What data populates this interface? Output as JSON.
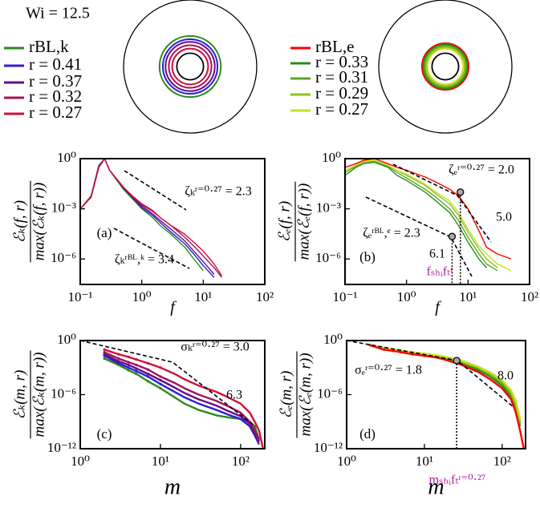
{
  "chart_data": [
    {
      "type": "rings",
      "title": "Wi = 12.5",
      "series": [
        {
          "name": "rBL,k",
          "color": "#2a8a1e",
          "value": 0.46
        },
        {
          "name": "r = 0.41",
          "color": "#2b1fd6",
          "value": 0.41
        },
        {
          "name": "r = 0.37",
          "color": "#6a0a8a",
          "value": 0.37
        },
        {
          "name": "r = 0.32",
          "color": "#a3135a",
          "value": 0.32
        },
        {
          "name": "r = 0.27",
          "color": "#d0103a",
          "value": 0.27
        }
      ]
    },
    {
      "type": "rings",
      "series": [
        {
          "name": "rBL,e",
          "color": "#ff0000",
          "value": 0.35
        },
        {
          "name": "r = 0.33",
          "color": "#2a8a1e",
          "value": 0.33
        },
        {
          "name": "r = 0.31",
          "color": "#5aa81e",
          "value": 0.31
        },
        {
          "name": "r = 0.29",
          "color": "#8ec21e",
          "value": 0.29
        },
        {
          "name": "r = 0.27",
          "color": "#c8e01e",
          "value": 0.27
        }
      ]
    },
    {
      "type": "line",
      "xscale": "log",
      "yscale": "log",
      "label": "(a)",
      "xlabel": "f",
      "ylabel": {
        "numerator": "ℰₖ(f, r)",
        "denominator": "max(ℰₖ(f, r))"
      },
      "xlim": [
        0.1,
        100
      ],
      "ylim": [
        3e-08,
        1
      ],
      "xticks": [
        {
          "value": 0.1,
          "label": "10⁻¹"
        },
        {
          "value": 1,
          "label": "10⁰"
        },
        {
          "value": 10,
          "label": "10¹"
        },
        {
          "value": 100,
          "label": "10²"
        }
      ],
      "yticks": [
        {
          "value": 1,
          "label": "10⁰"
        },
        {
          "value": 0.001,
          "label": "10⁻³"
        },
        {
          "value": 1e-06,
          "label": "10⁻⁶"
        }
      ],
      "annotations": [
        "ζₖʳ⁼⁰·²⁷ = 2.3",
        "ζₖʳᴮᴸ,ᵏ = 3.4"
      ],
      "x": [
        0.1,
        0.15,
        0.2,
        0.25,
        0.3,
        0.5,
        0.7,
        1,
        1.5,
        2,
        3,
        5,
        7,
        10,
        15,
        20
      ],
      "series": [
        {
          "color": "#2a8a1e",
          "values": [
            0.001,
            0.006,
            0.4,
            1,
            0.2,
            0.015,
            0.004,
            0.001,
            0.0003,
            0.0001,
            3e-05,
            5e-06,
            1e-06,
            2e-07,
            null,
            null
          ]
        },
        {
          "color": "#2b1fd6",
          "values": [
            0.001,
            0.005,
            0.35,
            1,
            0.2,
            0.018,
            0.005,
            0.0012,
            0.0004,
            0.00015,
            4e-05,
            8e-06,
            2e-06,
            4e-07,
            8e-08,
            null
          ]
        },
        {
          "color": "#6a0a8a",
          "values": [
            0.001,
            0.005,
            0.3,
            1,
            0.2,
            0.02,
            0.005,
            0.0015,
            0.0005,
            0.0002,
            6e-05,
            1.2e-05,
            3e-06,
            7e-07,
            1.2e-07,
            null
          ]
        },
        {
          "color": "#a3135a",
          "values": [
            0.001,
            0.005,
            0.3,
            1,
            0.2,
            0.02,
            0.006,
            0.0018,
            0.0007,
            0.0003,
            0.0001,
            2e-05,
            6e-06,
            1.5e-06,
            3e-07,
            8e-08
          ]
        },
        {
          "color": "#d0103a",
          "values": [
            0.001,
            0.005,
            0.3,
            1,
            0.2,
            0.02,
            0.006,
            0.002,
            0.0008,
            0.0003,
            0.0001,
            3e-05,
            1e-05,
            3e-06,
            5e-07,
            1e-07
          ]
        }
      ]
    },
    {
      "type": "line",
      "xscale": "log",
      "yscale": "log",
      "label": "(b)",
      "xlabel": "f",
      "ylabel": {
        "numerator": "ℰₑ(f, r)",
        "denominator": "max(ℰₑ(f, r))"
      },
      "xlim": [
        0.1,
        100
      ],
      "ylim": [
        3e-08,
        1
      ],
      "xticks": [
        {
          "value": 0.1,
          "label": "10⁻¹"
        },
        {
          "value": 1,
          "label": "10⁰"
        },
        {
          "value": 10,
          "label": "10¹"
        },
        {
          "value": 100,
          "label": "10²"
        }
      ],
      "yticks": [
        {
          "value": 1,
          "label": "10⁰"
        },
        {
          "value": 0.001,
          "label": "10⁻³"
        },
        {
          "value": 1e-06,
          "label": "10⁻⁶"
        }
      ],
      "annotations": [
        "ζₑʳ⁼⁰·²⁷ = 2.0",
        "5.0",
        "ζₑʳᴮᴸ,ᵉ = 2.3",
        "6.1",
        "fₛₕᵢfₜʳ"
      ],
      "markers": [
        {
          "x": 7.5,
          "y": 0.01
        },
        {
          "x": 5.5,
          "y": 2.2e-05
        }
      ],
      "x": [
        0.1,
        0.15,
        0.2,
        0.3,
        0.5,
        0.7,
        1,
        2,
        3,
        5,
        7,
        10,
        15,
        20,
        30,
        50
      ],
      "series": [
        {
          "color": "#2a8a1e",
          "values": [
            0.1,
            0.3,
            0.5,
            0.6,
            0.3,
            0.1,
            0.05,
            0.01,
            0.003,
            0.0006,
            0.0001,
            1e-05,
            1e-06,
            3e-07,
            null,
            null
          ]
        },
        {
          "color": "#5aa81e",
          "values": [
            0.15,
            0.35,
            0.6,
            0.7,
            0.35,
            0.15,
            0.07,
            0.015,
            0.005,
            0.001,
            0.0002,
            2e-05,
            2e-06,
            5e-07,
            2e-07,
            null
          ]
        },
        {
          "color": "#8ec21e",
          "values": [
            0.2,
            0.4,
            0.6,
            0.8,
            0.4,
            0.2,
            0.1,
            0.025,
            0.008,
            0.002,
            0.0004,
            4e-05,
            4e-06,
            1e-06,
            3e-07,
            null
          ]
        },
        {
          "color": "#c8e01e",
          "values": [
            0.2,
            0.4,
            0.7,
            0.8,
            0.4,
            0.2,
            0.12,
            0.03,
            0.01,
            0.003,
            0.0006,
            6e-05,
            6e-06,
            2e-06,
            5e-07,
            2e-07
          ]
        },
        {
          "color": "#ff0000",
          "values": [
            0.3,
            0.5,
            0.8,
            1,
            0.5,
            0.3,
            0.2,
            0.08,
            0.04,
            0.015,
            0.006,
            0.001,
            5e-05,
            5e-06,
            2e-06,
            1e-06
          ]
        }
      ]
    },
    {
      "type": "line",
      "xscale": "log",
      "yscale": "log",
      "label": "(c)",
      "xlabel": "m",
      "ylabel": {
        "numerator": "ℰₖ(m, r)",
        "denominator": "max(ℰₖ(m, r))"
      },
      "xlim": [
        1,
        200
      ],
      "ylim": [
        1e-12,
        1
      ],
      "xticks": [
        {
          "value": 1,
          "label": "10⁰"
        },
        {
          "value": 10,
          "label": "10¹"
        },
        {
          "value": 100,
          "label": "10²"
        }
      ],
      "yticks": [
        {
          "value": 1,
          "label": "10⁰"
        },
        {
          "value": 1e-06,
          "label": "10⁻⁶"
        },
        {
          "value": 1e-12,
          "label": "10⁻¹²"
        }
      ],
      "annotations": [
        "σₖʳ⁼⁰·²⁷ = 3.0",
        "6.3"
      ],
      "x": [
        2,
        3,
        4,
        5,
        7,
        10,
        15,
        20,
        30,
        50,
        70,
        100,
        130,
        150,
        170,
        190
      ],
      "series": [
        {
          "color": "#2a8a1e",
          "values": [
            0.01,
            0.002,
            0.0005,
            0.0002,
            3e-05,
            5e-06,
            5e-07,
            1e-07,
            2e-08,
            5e-09,
            3e-09,
            2e-09,
            1e-09,
            3e-10,
            1e-11,
            null
          ]
        },
        {
          "color": "#2b1fd6",
          "values": [
            0.02,
            0.003,
            0.001,
            0.0004,
            0.0001,
            1.5e-05,
            2e-06,
            5e-07,
            1e-07,
            2e-08,
            6e-09,
            2e-09,
            3e-10,
            3e-11,
            3e-12,
            null
          ]
        },
        {
          "color": "#6a0a8a",
          "values": [
            0.03,
            0.005,
            0.002,
            0.0008,
            0.0002,
            4e-05,
            6e-06,
            1.5e-06,
            3e-07,
            6e-08,
            1.5e-08,
            4e-09,
            6e-10,
            6e-11,
            6e-12,
            null
          ]
        },
        {
          "color": "#a3135a",
          "values": [
            0.05,
            0.01,
            0.004,
            0.002,
            0.0006,
            0.0001,
            2e-05,
            5e-06,
            1e-06,
            2e-07,
            5e-08,
            1e-08,
            1e-09,
            1e-10,
            1e-11,
            null
          ]
        },
        {
          "color": "#d0103a",
          "values": [
            0.1,
            0.03,
            0.015,
            0.008,
            0.003,
            0.001,
            0.0002,
            5e-05,
            1e-05,
            2e-06,
            5e-07,
            1e-07,
            1e-08,
            1e-09,
            1e-10,
            1e-12
          ]
        }
      ]
    },
    {
      "type": "line",
      "xscale": "log",
      "yscale": "log",
      "label": "(d)",
      "xlabel": "m",
      "ylabel": {
        "numerator": "ℰₑ(m, r)",
        "denominator": "max(ℰₑ(m, r))"
      },
      "xlim": [
        1,
        200
      ],
      "ylim": [
        1e-12,
        1
      ],
      "xticks": [
        {
          "value": 1,
          "label": "10⁰"
        },
        {
          "value": 10,
          "label": "10¹"
        },
        {
          "value": 100,
          "label": "10²"
        }
      ],
      "yticks": [
        {
          "value": 1,
          "label": "10⁰"
        },
        {
          "value": 1e-06,
          "label": "10⁻⁶"
        },
        {
          "value": 1e-12,
          "label": "10⁻¹²"
        }
      ],
      "annotations": [
        "σₑʳ⁼⁰·²⁷ = 1.8",
        "8.0",
        "mₛₕᵢfₜʳ⁼⁰·²⁷"
      ],
      "markers": [
        {
          "x": 26,
          "y": 0.006
        }
      ],
      "x": [
        2,
        3,
        4,
        5,
        7,
        10,
        15,
        20,
        30,
        50,
        70,
        100,
        130,
        150,
        170,
        190
      ],
      "series": [
        {
          "color": "#2a8a1e",
          "values": [
            0.3,
            0.12,
            0.08,
            0.06,
            0.035,
            0.025,
            0.015,
            0.008,
            0.003,
            0.0005,
            0.0001,
            1e-05,
            6e-07,
            3e-08,
            3e-10,
            null
          ]
        },
        {
          "color": "#5aa81e",
          "values": [
            0.3,
            0.13,
            0.09,
            0.065,
            0.04,
            0.028,
            0.017,
            0.01,
            0.004,
            0.0008,
            0.00015,
            2e-05,
            1e-06,
            5e-08,
            5e-10,
            null
          ]
        },
        {
          "color": "#8ec21e",
          "values": [
            0.3,
            0.14,
            0.1,
            0.07,
            0.045,
            0.03,
            0.02,
            0.012,
            0.005,
            0.001,
            0.0002,
            3e-05,
            2e-06,
            1e-07,
            1e-09,
            null
          ]
        },
        {
          "color": "#c8e01e",
          "values": [
            0.3,
            0.15,
            0.1,
            0.075,
            0.05,
            0.035,
            0.022,
            0.014,
            0.006,
            0.0012,
            0.0003,
            4e-05,
            3e-06,
            2e-07,
            2e-09,
            null
          ]
        },
        {
          "color": "#ff0000",
          "values": [
            0.3,
            0.1,
            0.07,
            0.05,
            0.03,
            0.02,
            0.012,
            0.006,
            0.002,
            0.0003,
            5e-05,
            5e-06,
            3e-07,
            1e-08,
            1e-10,
            1e-12
          ]
        }
      ]
    }
  ]
}
